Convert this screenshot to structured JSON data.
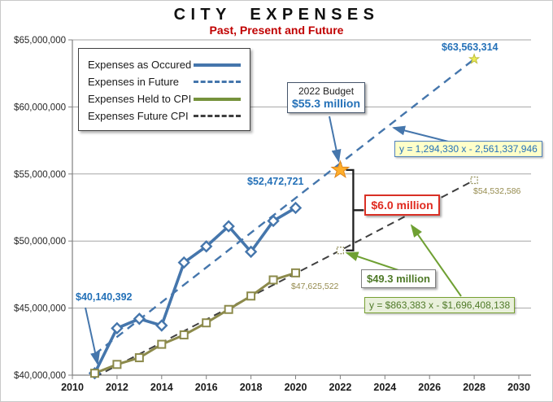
{
  "title": "CITY EXPENSES",
  "subtitle": "Past, Present and Future",
  "legend": {
    "items": [
      {
        "label": "Expenses as Occured",
        "line": "solid-blue"
      },
      {
        "label": "Expenses in Future",
        "line": "dashed-blue"
      },
      {
        "label": "Expenses Held to CPI",
        "line": "solid-green"
      },
      {
        "label": "Expenses Future CPI",
        "line": "dashed-dark"
      }
    ]
  },
  "annotations": {
    "start_point": "$40,140,392",
    "last_actual": "$52,472,721",
    "cpi_2020": "$47,625,522",
    "cpi_2028": "$54,532,586",
    "future_2028": "$63,563,314",
    "budget_title": "2022 Budget",
    "budget_value": "$55.3 million",
    "difference": "$6.0 million",
    "cpi_2022": "$49.3 million",
    "future_trend_formula": "y = 1,294,330 x - 2,561,337,946",
    "cpi_trend_formula": "y = $863,383 x - $1,696,408,138"
  },
  "colors": {
    "blue": "#4576AC",
    "blue_text": "#2471B8",
    "olive": "#8C8A4B",
    "olive_text": "#958B4E",
    "green": "#6FA033",
    "green_text": "#4F7A28",
    "dark": "#3F3F3F",
    "red": "#D93025",
    "orange_star_fill": "#FFAE2A",
    "orange_star_stroke": "#E0861A",
    "yellow_star_fill": "#EDED55",
    "yellow_star_stroke": "#BEBE3C",
    "grid": "#A6A6A6",
    "axis": "#808080"
  },
  "chart_data": {
    "type": "line",
    "title": "CITY EXPENSES",
    "subtitle": "Past, Present and Future",
    "x_axis": {
      "min": 2010,
      "max": 2030,
      "tick_step": 2,
      "tick_labels": [
        "2010",
        "2012",
        "2014",
        "2016",
        "2018",
        "2020",
        "2022",
        "2024",
        "2026",
        "2028",
        "2030"
      ]
    },
    "y_axis": {
      "min": 40000000,
      "max": 65000000,
      "tick_step": 5000000,
      "tick_labels": [
        "$40,000,000",
        "$45,000,000",
        "$50,000,000",
        "$55,000,000",
        "$60,000,000",
        "$65,000,000"
      ]
    },
    "grid": "horizontal",
    "legend_position": "top-left-inside",
    "series": [
      {
        "name": "Expenses as Occured",
        "style": "solid",
        "color_key": "blue",
        "marker": "diamond",
        "x": [
          2011,
          2012,
          2013,
          2014,
          2015,
          2016,
          2017,
          2018,
          2019,
          2020
        ],
        "y": [
          40140392,
          43500000,
          44200000,
          43700000,
          48400000,
          49600000,
          51100000,
          49200000,
          51500000,
          52472721
        ]
      },
      {
        "name": "Expenses in Future",
        "style": "dashed",
        "color_key": "blue",
        "marker": "star-end",
        "x": [
          2011,
          2028
        ],
        "y": [
          41559684,
          63563314
        ]
      },
      {
        "name": "Expenses Held to CPI",
        "style": "solid",
        "color_key": "olive",
        "marker": "square",
        "x": [
          2011,
          2012,
          2013,
          2014,
          2015,
          2016,
          2017,
          2018,
          2019,
          2020
        ],
        "y": [
          40140392,
          40800000,
          41300000,
          42300000,
          43000000,
          43900000,
          44900000,
          45900000,
          47100000,
          47625522
        ]
      },
      {
        "name": "Expenses Future CPI",
        "style": "dashed",
        "color_key": "dark",
        "marker": "dotted-square-skip-first",
        "x": [
          2011,
          2022,
          2028
        ],
        "y": [
          39855075,
          49300000,
          54532586
        ]
      }
    ],
    "budget_point": {
      "x": 2022,
      "y": 55300000,
      "label": "$55.3 million"
    },
    "difference_bracket": {
      "x": 2022,
      "y_top": 55300000,
      "y_bottom": 49300000,
      "label": "$6.0 million"
    }
  }
}
